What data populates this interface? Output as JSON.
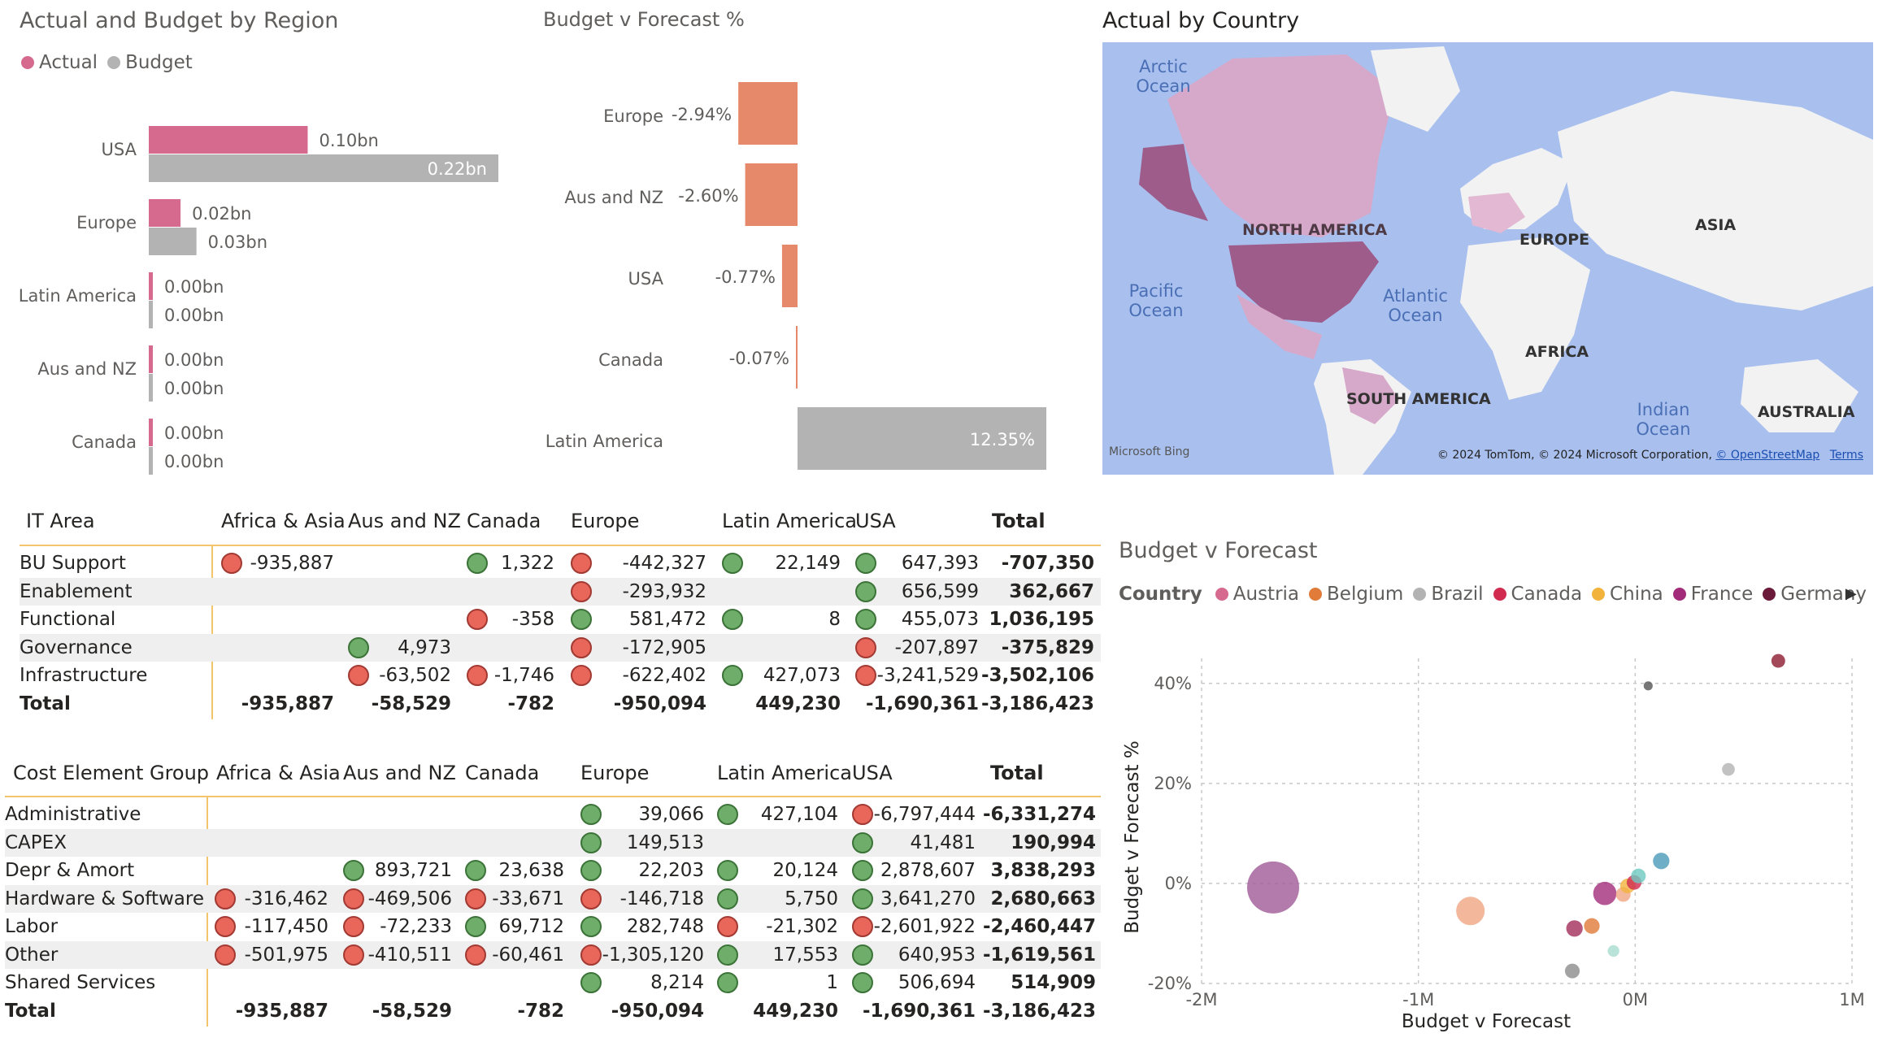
{
  "visual1": {
    "title": "Actual and Budget by Region",
    "legend": [
      {
        "label": "Actual",
        "color": "#d6698e"
      },
      {
        "label": "Budget",
        "color": "#b3b3b3"
      }
    ]
  },
  "visual2": {
    "title": "Budget v Forecast %"
  },
  "visual3": {
    "title": "Actual by Country",
    "labels": {
      "arctic": "Arctic Ocean",
      "north_america": "NORTH AMERICA",
      "europe": "EUROPE",
      "asia": "ASIA",
      "pacific": "Pacific Ocean",
      "atlantic": "Atlantic Ocean",
      "africa": "AFRICA",
      "south_america": "SOUTH AMERICA",
      "indian": "Indian Ocean",
      "australia": "AUSTRALIA"
    },
    "logo": "Microsoft Bing",
    "copyright": "© 2024 TomTom, © 2024 Microsoft Corporation,",
    "osm": "© OpenStreetMap",
    "terms": "Terms"
  },
  "visual4": {
    "title": "Budget v Forecast",
    "legend_title": "Country",
    "legend": [
      {
        "label": "Austria",
        "color": "#d6698e"
      },
      {
        "label": "Belgium",
        "color": "#e07b39"
      },
      {
        "label": "Brazil",
        "color": "#b3b3b3"
      },
      {
        "label": "Canada",
        "color": "#d12c4f"
      },
      {
        "label": "China",
        "color": "#f2b33d"
      },
      {
        "label": "France",
        "color": "#a32c7a"
      },
      {
        "label": "Germany",
        "color": "#6b1a3a"
      }
    ]
  },
  "chart_data": [
    {
      "type": "bar",
      "orientation": "horizontal",
      "categories": [
        "USA",
        "Europe",
        "Latin America",
        "Aus and NZ",
        "Canada"
      ],
      "series": [
        {
          "name": "Actual",
          "values": [
            0.1,
            0.02,
            0.0,
            0.0,
            0.0
          ],
          "labels": [
            "0.10bn",
            "0.02bn",
            "0.00bn",
            "0.00bn",
            "0.00bn"
          ],
          "color": "#d6698e"
        },
        {
          "name": "Budget",
          "values": [
            0.22,
            0.03,
            0.0,
            0.0,
            0.0
          ],
          "labels": [
            "0.22bn",
            "0.03bn",
            "0.00bn",
            "0.00bn",
            "0.00bn"
          ],
          "color": "#b3b3b3"
        }
      ],
      "title": "Actual and Budget by Region"
    },
    {
      "type": "bar",
      "orientation": "horizontal",
      "categories": [
        "Europe",
        "Aus and NZ",
        "USA",
        "Canada",
        "Latin America"
      ],
      "values": [
        -2.94,
        -2.6,
        -0.77,
        -0.07,
        12.35
      ],
      "labels": [
        "-2.94%",
        "-2.60%",
        "-0.77%",
        "-0.07%",
        "12.35%"
      ],
      "colors": [
        "#e5896a",
        "#e5896a",
        "#e5896a",
        "#e5896a",
        "#b3b3b3"
      ],
      "title": "Budget v Forecast %"
    },
    {
      "type": "table",
      "columns": [
        "IT Area",
        "Africa & Asia",
        "Aus and NZ",
        "Canada",
        "Europe",
        "Latin America",
        "USA",
        "Total"
      ],
      "rows": [
        {
          "label": "BU Support",
          "cells": [
            {
              "v": "-935,887",
              "i": "red"
            },
            {
              "v": "",
              "i": ""
            },
            {
              "v": "1,322",
              "i": "green"
            },
            {
              "v": "-442,327",
              "i": "red"
            },
            {
              "v": "22,149",
              "i": "green"
            },
            {
              "v": "647,393",
              "i": "green"
            }
          ],
          "total": "-707,350"
        },
        {
          "label": "Enablement",
          "cells": [
            {
              "v": "",
              "i": ""
            },
            {
              "v": "",
              "i": ""
            },
            {
              "v": "",
              "i": ""
            },
            {
              "v": "-293,932",
              "i": "red"
            },
            {
              "v": "",
              "i": ""
            },
            {
              "v": "656,599",
              "i": "green"
            }
          ],
          "total": "362,667"
        },
        {
          "label": "Functional",
          "cells": [
            {
              "v": "",
              "i": ""
            },
            {
              "v": "",
              "i": ""
            },
            {
              "v": "-358",
              "i": "red"
            },
            {
              "v": "581,472",
              "i": "green"
            },
            {
              "v": "8",
              "i": "green"
            },
            {
              "v": "455,073",
              "i": "green"
            }
          ],
          "total": "1,036,195"
        },
        {
          "label": "Governance",
          "cells": [
            {
              "v": "",
              "i": ""
            },
            {
              "v": "4,973",
              "i": "green"
            },
            {
              "v": "",
              "i": ""
            },
            {
              "v": "-172,905",
              "i": "red"
            },
            {
              "v": "",
              "i": ""
            },
            {
              "v": "-207,897",
              "i": "red"
            }
          ],
          "total": "-375,829"
        },
        {
          "label": "Infrastructure",
          "cells": [
            {
              "v": "",
              "i": ""
            },
            {
              "v": "-63,502",
              "i": "red"
            },
            {
              "v": "-1,746",
              "i": "red"
            },
            {
              "v": "-622,402",
              "i": "red"
            },
            {
              "v": "427,073",
              "i": "green"
            },
            {
              "v": "-3,241,529",
              "i": "red"
            }
          ],
          "total": "-3,502,106"
        }
      ],
      "totals": {
        "label": "Total",
        "cells": [
          "-935,887",
          "-58,529",
          "-782",
          "-950,094",
          "449,230",
          "-1,690,361"
        ],
        "total": "-3,186,423"
      }
    },
    {
      "type": "table",
      "columns": [
        "Cost Element Group",
        "Africa & Asia",
        "Aus and NZ",
        "Canada",
        "Europe",
        "Latin America",
        "USA",
        "Total"
      ],
      "rows": [
        {
          "label": "Administrative",
          "cells": [
            {
              "v": "",
              "i": ""
            },
            {
              "v": "",
              "i": ""
            },
            {
              "v": "",
              "i": ""
            },
            {
              "v": "39,066",
              "i": "green"
            },
            {
              "v": "427,104",
              "i": "green"
            },
            {
              "v": "-6,797,444",
              "i": "red"
            }
          ],
          "total": "-6,331,274"
        },
        {
          "label": "CAPEX",
          "cells": [
            {
              "v": "",
              "i": ""
            },
            {
              "v": "",
              "i": ""
            },
            {
              "v": "",
              "i": ""
            },
            {
              "v": "149,513",
              "i": "green"
            },
            {
              "v": "",
              "i": ""
            },
            {
              "v": "41,481",
              "i": "green"
            }
          ],
          "total": "190,994"
        },
        {
          "label": "Depr & Amort",
          "cells": [
            {
              "v": "",
              "i": ""
            },
            {
              "v": "893,721",
              "i": "green"
            },
            {
              "v": "23,638",
              "i": "green"
            },
            {
              "v": "22,203",
              "i": "green"
            },
            {
              "v": "20,124",
              "i": "green"
            },
            {
              "v": "2,878,607",
              "i": "green"
            }
          ],
          "total": "3,838,293"
        },
        {
          "label": "Hardware & Software",
          "cells": [
            {
              "v": "-316,462",
              "i": "red"
            },
            {
              "v": "-469,506",
              "i": "red"
            },
            {
              "v": "-33,671",
              "i": "red"
            },
            {
              "v": "-146,718",
              "i": "red"
            },
            {
              "v": "5,750",
              "i": "green"
            },
            {
              "v": "3,641,270",
              "i": "green"
            }
          ],
          "total": "2,680,663"
        },
        {
          "label": "Labor",
          "cells": [
            {
              "v": "-117,450",
              "i": "red"
            },
            {
              "v": "-72,233",
              "i": "red"
            },
            {
              "v": "69,712",
              "i": "green"
            },
            {
              "v": "282,748",
              "i": "green"
            },
            {
              "v": "-21,302",
              "i": "red"
            },
            {
              "v": "-2,601,922",
              "i": "red"
            }
          ],
          "total": "-2,460,447"
        },
        {
          "label": "Other",
          "cells": [
            {
              "v": "-501,975",
              "i": "red"
            },
            {
              "v": "-410,511",
              "i": "red"
            },
            {
              "v": "-60,461",
              "i": "red"
            },
            {
              "v": "-1,305,120",
              "i": "red"
            },
            {
              "v": "17,553",
              "i": "green"
            },
            {
              "v": "640,953",
              "i": "green"
            }
          ],
          "total": "-1,619,561"
        },
        {
          "label": "Shared Services",
          "cells": [
            {
              "v": "",
              "i": ""
            },
            {
              "v": "",
              "i": ""
            },
            {
              "v": "",
              "i": ""
            },
            {
              "v": "8,214",
              "i": "green"
            },
            {
              "v": "1",
              "i": "green"
            },
            {
              "v": "506,694",
              "i": "green"
            }
          ],
          "total": "514,909"
        }
      ],
      "totals": {
        "label": "Total",
        "cells": [
          "-935,887",
          "-58,529",
          "-782",
          "-950,094",
          "449,230",
          "-1,690,361"
        ],
        "total": "-3,186,423"
      }
    },
    {
      "type": "scatter",
      "title": "Budget v Forecast",
      "xlabel": "Budget v Forecast",
      "ylabel": "Budget v Forecast %",
      "xlim": [
        -2000000,
        1000000
      ],
      "ylim": [
        -20,
        45
      ],
      "xticks": [
        -2000000,
        -1000000,
        0,
        1000000
      ],
      "xtick_labels": [
        "-2M",
        "-1M",
        "0M",
        "1M"
      ],
      "yticks": [
        -20,
        0,
        20,
        40
      ],
      "ytick_labels": [
        "-20%",
        "0%",
        "20%",
        "40%"
      ],
      "grid": true,
      "points": [
        {
          "x": -1670000,
          "y": -0.8,
          "size": 1.0,
          "color": "#a05a96"
        },
        {
          "x": -760000,
          "y": -5.5,
          "size": 0.3,
          "color": "#f0a582"
        },
        {
          "x": -290000,
          "y": -17.5,
          "size": 0.08,
          "color": "#8c8c8c"
        },
        {
          "x": -280000,
          "y": -9,
          "size": 0.1,
          "color": "#a32c5a"
        },
        {
          "x": -200000,
          "y": -8.5,
          "size": 0.09,
          "color": "#e07b39"
        },
        {
          "x": -140000,
          "y": -2,
          "size": 0.2,
          "color": "#a32c7a"
        },
        {
          "x": -100000,
          "y": -13.5,
          "size": 0.05,
          "color": "#a8dcd0"
        },
        {
          "x": -55000,
          "y": -2.2,
          "size": 0.08,
          "color": "#f0a582"
        },
        {
          "x": -35000,
          "y": -0.5,
          "size": 0.08,
          "color": "#f2b33d"
        },
        {
          "x": -5000,
          "y": 0.2,
          "size": 0.08,
          "color": "#d12c4f"
        },
        {
          "x": 15000,
          "y": 1.5,
          "size": 0.08,
          "color": "#6ec9c0"
        },
        {
          "x": 120000,
          "y": 4.5,
          "size": 0.1,
          "color": "#4a9ab8"
        },
        {
          "x": 60000,
          "y": 39.5,
          "size": 0.03,
          "color": "#555555"
        },
        {
          "x": 430000,
          "y": 22.8,
          "size": 0.06,
          "color": "#b3b3b3"
        },
        {
          "x": 660000,
          "y": 44.5,
          "size": 0.07,
          "color": "#8b1a2e"
        }
      ]
    }
  ]
}
